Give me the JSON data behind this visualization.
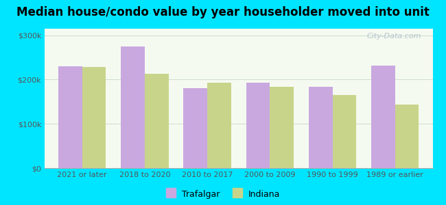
{
  "title": "Median house/condo value by year householder moved into unit",
  "categories": [
    "2021 or later",
    "2018 to 2020",
    "2010 to 2017",
    "2000 to 2009",
    "1990 to 1999",
    "1989 or earlier"
  ],
  "trafalgar": [
    230000,
    275000,
    180000,
    193000,
    183000,
    232000
  ],
  "indiana": [
    228000,
    213000,
    193000,
    183000,
    165000,
    143000
  ],
  "trafalgar_color": "#c9a8e0",
  "indiana_color": "#c8d48a",
  "background_outer": "#00e5ff",
  "background_inner_top": "#e8f4f0",
  "background_inner_bottom": "#f5faf0",
  "ylabel_ticks": [
    "$0",
    "$100k",
    "$200k",
    "$300k"
  ],
  "ytick_vals": [
    0,
    100000,
    200000,
    300000
  ],
  "ylim": [
    0,
    315000
  ],
  "legend_trafalgar": "Trafalgar",
  "legend_indiana": "Indiana",
  "watermark": "City-Data.com",
  "title_fontsize": 12,
  "tick_fontsize": 8,
  "bar_width": 0.38
}
